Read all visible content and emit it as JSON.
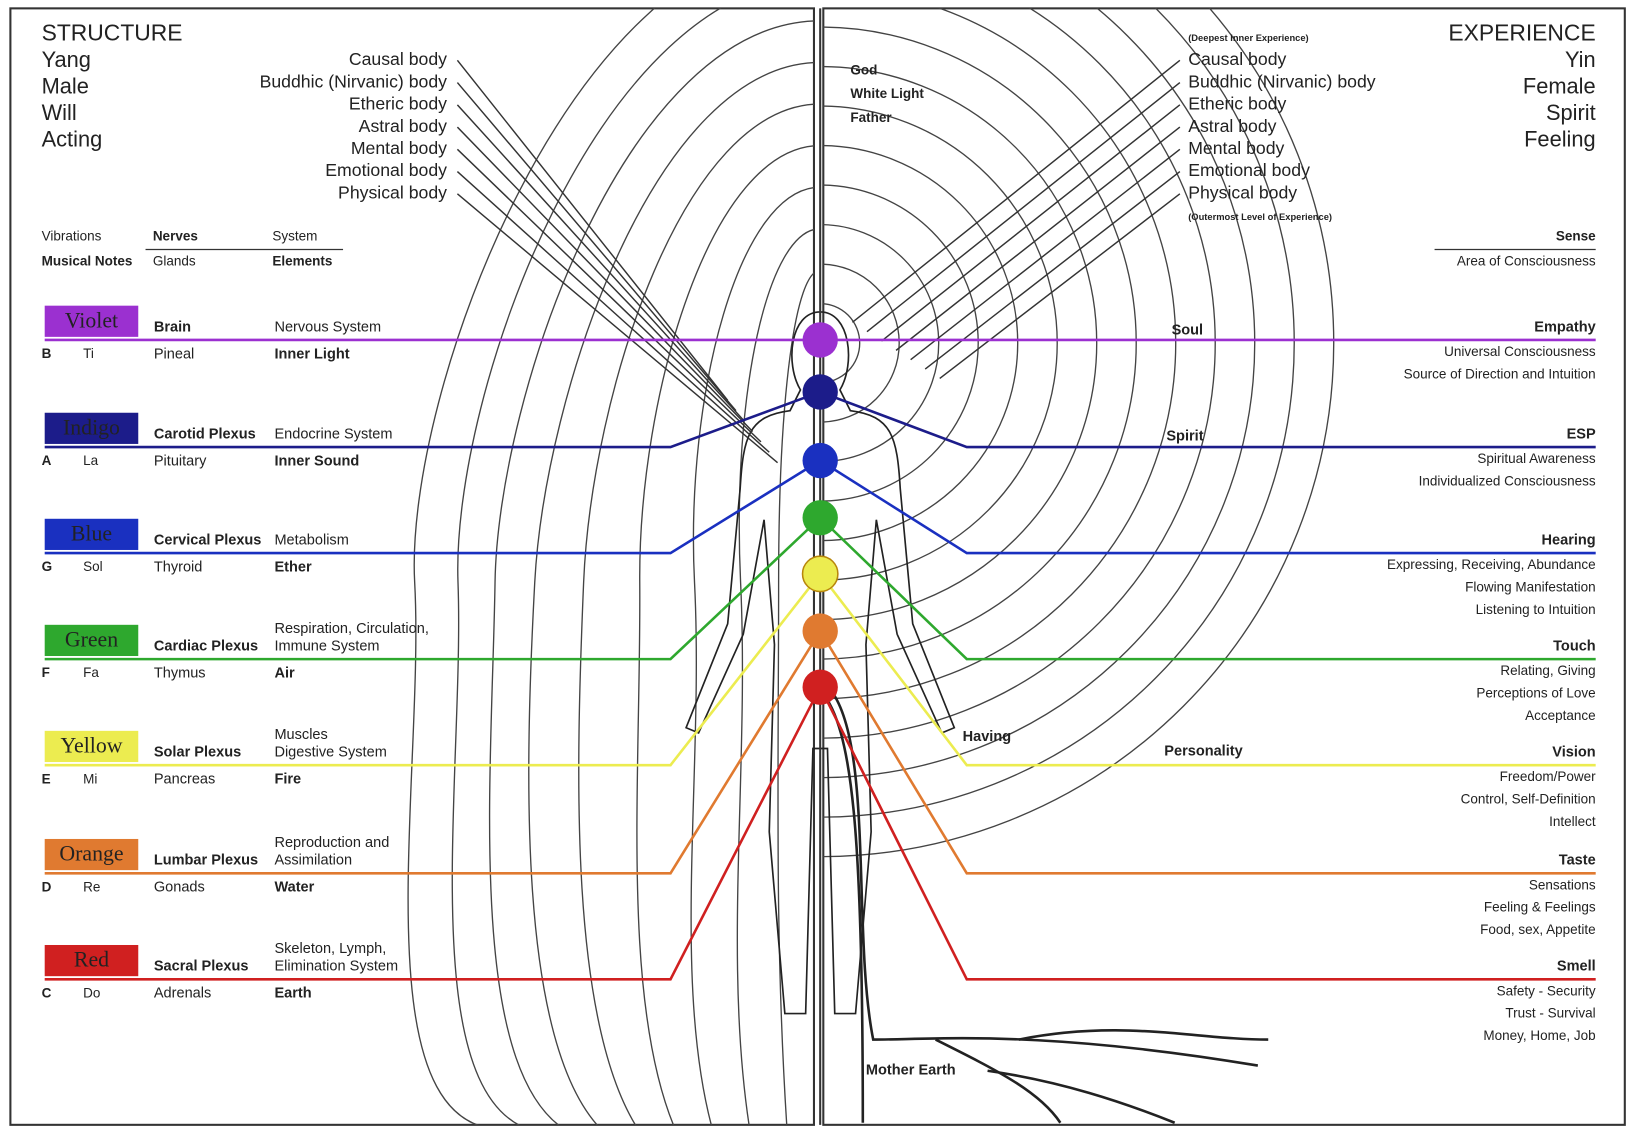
{
  "left_header": {
    "title": "STRUCTURE",
    "lines": [
      "Yang",
      "Male",
      "Will",
      "Acting"
    ]
  },
  "right_header": {
    "title": "EXPERIENCE",
    "lines": [
      "Yin",
      "Female",
      "Spirit",
      "Feeling"
    ]
  },
  "bodies": {
    "left": [
      "Causal body",
      "Buddhic (Nirvanic) body",
      "Etheric body",
      "Astral body",
      "Mental body",
      "Emotional body",
      "Physical body"
    ],
    "right_top": "(Deepest Inner Experience)",
    "right": [
      "Causal body",
      "Buddhic (Nirvanic) body",
      "Etheric body",
      "Astral body",
      "Mental body",
      "Emotional body",
      "Physical body"
    ],
    "right_bottom": "(Outermost Level of Experience)"
  },
  "column_headers": {
    "row1": [
      "Vibrations",
      "Nerves",
      "System"
    ],
    "row2": [
      "Musical Notes",
      "Glands",
      "Elements"
    ],
    "right": [
      "Sense",
      "Area of Consciousness"
    ]
  },
  "chakras": [
    {
      "color_name": "Violet",
      "color": "#9b30d0",
      "label_color": "#c890f0",
      "nerves": "Brain",
      "system": [
        "Nervous System"
      ],
      "note": "B",
      "solfege": "Ti",
      "gland": "Pineal",
      "element": "Inner Light",
      "sense": "Empathy",
      "consciousness": [
        "Universal Consciousness",
        "Source of Direction and Intuition"
      ]
    },
    {
      "color_name": "Indigo",
      "color": "#1c1c8a",
      "label_color": "#3a3aa8",
      "nerves": "Carotid Plexus",
      "system": [
        "Endocrine System"
      ],
      "note": "A",
      "solfege": "La",
      "gland": "Pituitary",
      "element": "Inner Sound",
      "sense": "ESP",
      "consciousness": [
        "Spiritual Awareness",
        "Individualized Consciousness"
      ]
    },
    {
      "color_name": "Blue",
      "color": "#1a30c0",
      "label_color": "#4a60e8",
      "nerves": "Cervical Plexus",
      "system": [
        "Metabolism"
      ],
      "note": "G",
      "solfege": "Sol",
      "gland": "Thyroid",
      "element": "Ether",
      "sense": "Hearing",
      "consciousness": [
        "Expressing, Receiving, Abundance",
        "Flowing Manifestation",
        "Listening to Intuition"
      ]
    },
    {
      "color_name": "Green",
      "color": "#2ea82e",
      "label_color": "#9ae89a",
      "nerves": "Cardiac Plexus",
      "system": [
        "Respiration, Circulation,",
        "Immune System"
      ],
      "note": "F",
      "solfege": "Fa",
      "gland": "Thymus",
      "element": "Air",
      "sense": "Touch",
      "consciousness": [
        "Relating, Giving",
        "Perceptions of Love",
        "Acceptance"
      ]
    },
    {
      "color_name": "Yellow",
      "color": "#ecec50",
      "label_color": "#333333",
      "nerves": "Solar Plexus",
      "system": [
        "Muscles",
        "Digestive System"
      ],
      "note": "E",
      "solfege": "Mi",
      "gland": "Pancreas",
      "element": "Fire",
      "sense": "Vision",
      "consciousness": [
        "Freedom/Power",
        "Control, Self-Definition",
        "Intellect"
      ]
    },
    {
      "color_name": "Orange",
      "color": "#e07a30",
      "label_color": "#f8d0a8",
      "nerves": "Lumbar Plexus",
      "system": [
        "Reproduction and",
        "Assimilation"
      ],
      "note": "D",
      "solfege": "Re",
      "gland": "Gonads",
      "element": "Water",
      "sense": "Taste",
      "consciousness": [
        "Sensations",
        "Feeling & Feelings",
        "Food, sex, Appetite"
      ]
    },
    {
      "color_name": "Red",
      "color": "#d02020",
      "label_color": "#f49090",
      "nerves": "Sacral Plexus",
      "system": [
        "Skeleton, Lymph,",
        "Elimination System"
      ],
      "note": "C",
      "solfege": "Do",
      "gland": "Adrenals",
      "element": "Earth",
      "sense": "Smell",
      "consciousness": [
        "Safety - Security",
        "Trust - Survival",
        "Money, Home, Job"
      ]
    }
  ],
  "mid_labels": [
    "Soul",
    "Spirit",
    "Having",
    "Personality"
  ],
  "divine": [
    "God",
    "White Light",
    "Father"
  ],
  "earth": "Mother Earth"
}
